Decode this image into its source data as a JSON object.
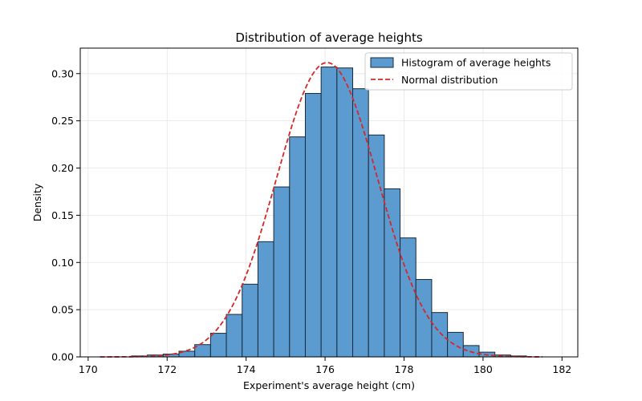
{
  "chart_data": {
    "type": "histogram",
    "title": "Distribution of average heights",
    "xlabel": "Experiment's average height (cm)",
    "ylabel": "Density",
    "xlim": [
      169.8,
      182.4
    ],
    "ylim": [
      0,
      0.327
    ],
    "xticks": [
      170,
      172,
      174,
      176,
      178,
      180,
      182
    ],
    "xtick_labels": [
      "170",
      "172",
      "174",
      "176",
      "178",
      "180",
      "182"
    ],
    "yticks": [
      0,
      0.05,
      0.1,
      0.15,
      0.2,
      0.25,
      0.3
    ],
    "ytick_labels": [
      "0.00",
      "0.05",
      "0.10",
      "0.15",
      "0.20",
      "0.25",
      "0.30"
    ],
    "grid": true,
    "legend_position": "top-right",
    "bins": {
      "edges": [
        170.3,
        170.7,
        171.1,
        171.5,
        171.9,
        172.3,
        172.7,
        173.1,
        173.5,
        173.9,
        174.3,
        174.7,
        175.1,
        175.5,
        175.9,
        176.3,
        176.7,
        177.1,
        177.5,
        177.9,
        178.3,
        178.7,
        179.1,
        179.5,
        179.9,
        180.3,
        180.7,
        181.1,
        181.5
      ],
      "values": [
        0.0,
        0.0,
        0.001,
        0.002,
        0.003,
        0.006,
        0.013,
        0.025,
        0.045,
        0.077,
        0.122,
        0.18,
        0.233,
        0.279,
        0.307,
        0.306,
        0.284,
        0.235,
        0.178,
        0.126,
        0.082,
        0.047,
        0.026,
        0.012,
        0.005,
        0.002,
        0.001,
        0.0
      ]
    },
    "normal_curve": {
      "mean": 176.05,
      "std": 1.28
    },
    "series": [
      {
        "name": "Histogram of average heights",
        "kind": "bar",
        "color": "#5b9bd0",
        "edge_color": "#1a2a38"
      },
      {
        "name": "Normal distribution",
        "kind": "dashed-line",
        "color": "#d62728"
      }
    ]
  }
}
